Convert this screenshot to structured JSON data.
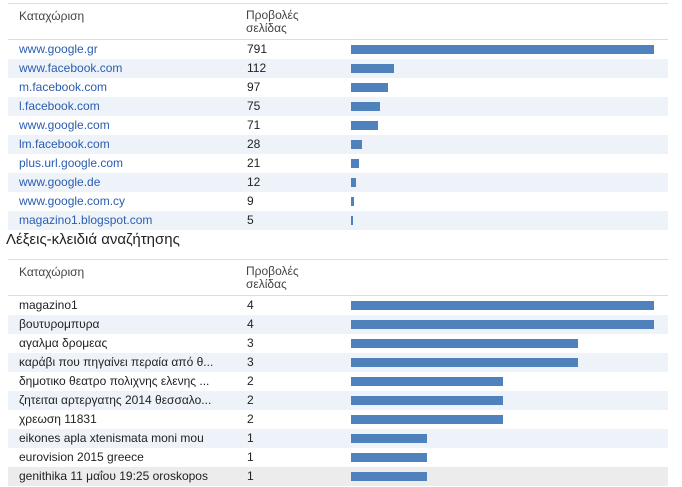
{
  "referrers": {
    "headers": [
      "Καταχώριση",
      "Προβολές σελίδας"
    ],
    "rows": [
      {
        "entry": "www.google.gr",
        "views": 791
      },
      {
        "entry": "www.facebook.com",
        "views": 112
      },
      {
        "entry": "m.facebook.com",
        "views": 97
      },
      {
        "entry": "l.facebook.com",
        "views": 75
      },
      {
        "entry": "www.google.com",
        "views": 71
      },
      {
        "entry": "lm.facebook.com",
        "views": 28
      },
      {
        "entry": "plus.url.google.com",
        "views": 21
      },
      {
        "entry": "www.google.de",
        "views": 12
      },
      {
        "entry": "www.google.com.cy",
        "views": 9
      },
      {
        "entry": "magazino1.blogspot.com",
        "views": 5
      }
    ]
  },
  "keywords": {
    "title": "Λέξεις-κλειδιά αναζήτησης",
    "headers": [
      "Καταχώριση",
      "Προβολές σελίδας"
    ],
    "rows": [
      {
        "entry": "magazino1",
        "views": 4
      },
      {
        "entry": "βουτυρομπυρα",
        "views": 4
      },
      {
        "entry": "αγαλμα δρομεας",
        "views": 3
      },
      {
        "entry": "καράβι που πηγαίνει περαία από θ...",
        "views": 3
      },
      {
        "entry": "δημοτικο θεατρο πολιχνης ελενης ...",
        "views": 2
      },
      {
        "entry": "ζητειται αρτεργατης 2014 θεσσαλο...",
        "views": 2
      },
      {
        "entry": "χρεωση 11831",
        "views": 2
      },
      {
        "entry": "eikones apla xtenismata moni mou",
        "views": 1
      },
      {
        "entry": "eurovision 2015 greece",
        "views": 1
      },
      {
        "entry": "genithika 11 μαΐου 19:25 oroskopos",
        "views": 1
      }
    ]
  }
}
